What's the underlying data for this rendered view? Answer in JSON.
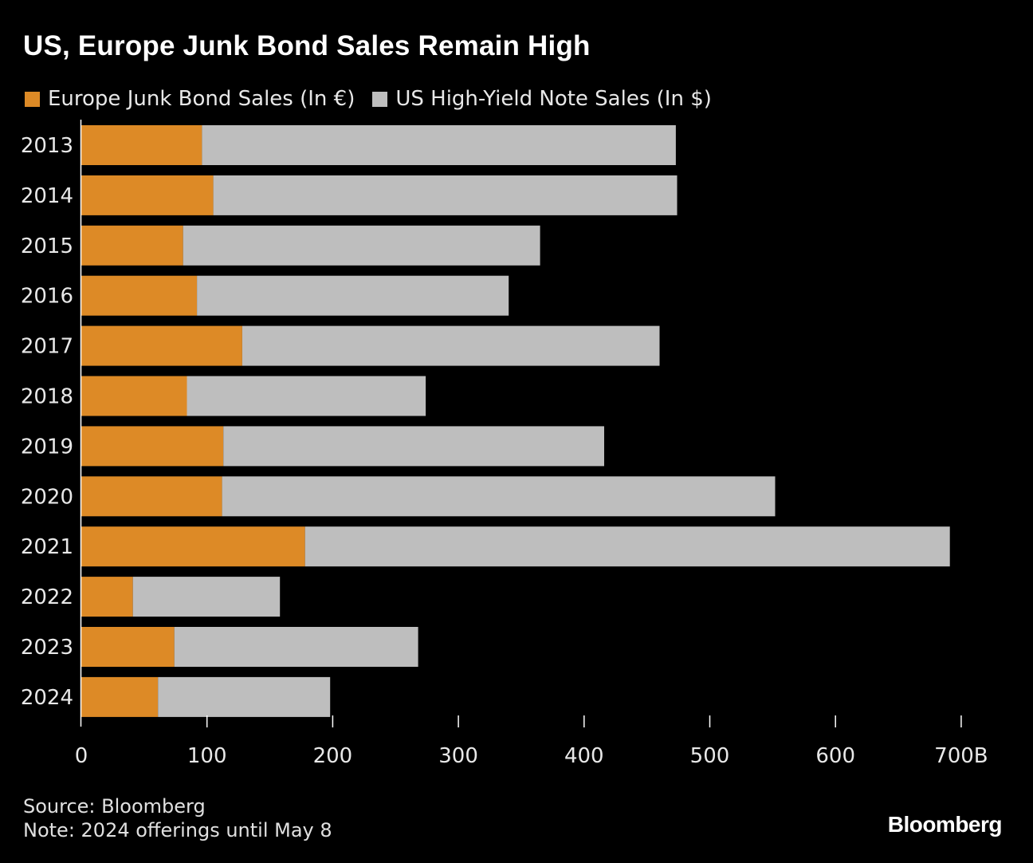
{
  "title": "US, Europe Junk Bond Sales Remain High",
  "legend": [
    {
      "label": "Europe Junk Bond Sales (In €)",
      "color": "#dd8a26"
    },
    {
      "label": "US High-Yield Note Sales (In $)",
      "color": "#bebebe"
    }
  ],
  "chart_data": {
    "type": "bar",
    "orientation": "horizontal",
    "stacked": true,
    "categories": [
      "2013",
      "2014",
      "2015",
      "2016",
      "2017",
      "2018",
      "2019",
      "2020",
      "2021",
      "2022",
      "2023",
      "2024"
    ],
    "series": [
      {
        "name": "Europe Junk Bond Sales (In €)",
        "color": "#dd8a26",
        "values": [
          96,
          105,
          81,
          92,
          128,
          84,
          113,
          112,
          178,
          41,
          74,
          61
        ]
      },
      {
        "name": "US High-Yield Note Sales (In $)",
        "color": "#bebebe",
        "values": [
          377,
          369,
          284,
          248,
          332,
          190,
          303,
          440,
          513,
          117,
          194,
          137
        ]
      }
    ],
    "xticks": [
      "0",
      "100",
      "200",
      "300",
      "400",
      "500",
      "600",
      "700B"
    ],
    "xlim": [
      0,
      700
    ],
    "title": "US, Europe Junk Bond Sales Remain High",
    "xlabel": "",
    "ylabel": ""
  },
  "footer": {
    "source": "Source: Bloomberg",
    "note": "Note: 2024 offerings until May 8"
  },
  "brand": "Bloomberg"
}
